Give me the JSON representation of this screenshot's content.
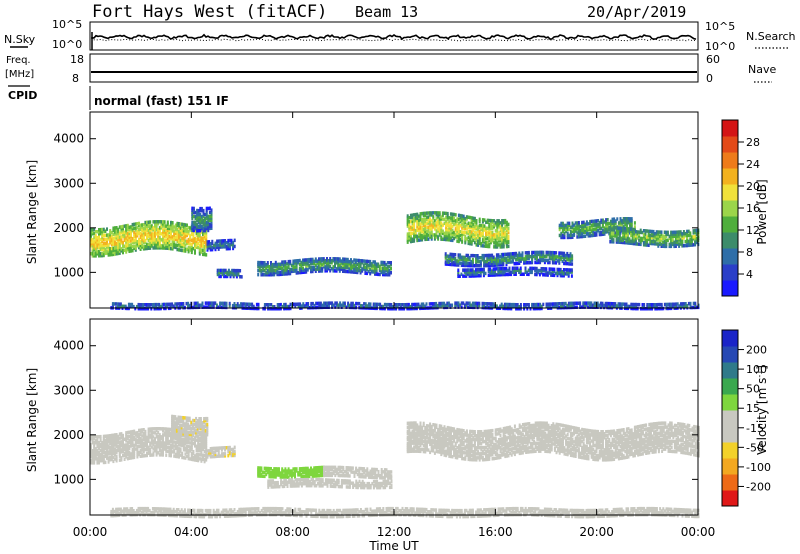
{
  "header": {
    "station": "Fort Hays West (fitACF)",
    "beam": "Beam 13",
    "date": "20/Apr/2019"
  },
  "noise_panel": {
    "left_label": "N.Sky",
    "right_label": "N.Search",
    "left_ticks": [
      "10^5",
      "10^0"
    ],
    "right_ticks": [
      "10^5",
      "10^0"
    ]
  },
  "freq_panel": {
    "left_label_1": "Freq.",
    "left_label_2": "[MHz]",
    "right_label": "Nave",
    "left_ticks": [
      "18",
      "8"
    ],
    "right_ticks": [
      "60",
      "0"
    ]
  },
  "cpid": {
    "label": "CPID",
    "mode": "normal (fast) 151 IF"
  },
  "colors": {
    "power_scale": [
      "#1a1aff",
      "#2a3fc8",
      "#2e6ea8",
      "#3c8c6a",
      "#4fae3c",
      "#9bd54a",
      "#f1e13a",
      "#f3b21f",
      "#ee7b1a",
      "#e34a18",
      "#d41515"
    ],
    "velocity_scale": [
      "#e01818",
      "#ee6a16",
      "#f3a820",
      "#f2d12a",
      "#c8c8c0",
      "#c8c8c0",
      "#7ed63e",
      "#3aa84f",
      "#2f7a8a",
      "#2648b4",
      "#1a24c8"
    ],
    "ground_scatter": "#c6c6be"
  },
  "chart_data": [
    {
      "type": "heatmap",
      "title": "Power",
      "ylabel": "Slant Range [km]",
      "yticks": [
        "1000",
        "2000",
        "3000",
        "4000"
      ],
      "ylim": [
        200,
        4600
      ],
      "xlim_hours": [
        0,
        24
      ],
      "colorbar": {
        "label": "Power [dB]",
        "ticks": [
          "4",
          "8",
          "12",
          "16",
          "20",
          "24",
          "28"
        ],
        "range": [
          0,
          32
        ]
      },
      "regions": [
        {
          "start_hour": 0.0,
          "end_hour": 4.6,
          "center_km": 1800,
          "width_km": 600,
          "value_db": 22
        },
        {
          "start_hour": 4.0,
          "end_hour": 4.8,
          "center_km": 2300,
          "width_km": 500,
          "value_db": 12
        },
        {
          "start_hour": 4.6,
          "end_hour": 5.7,
          "center_km": 1650,
          "width_km": 200,
          "value_db": 10
        },
        {
          "start_hour": 5.0,
          "end_hour": 6.0,
          "center_km": 1000,
          "width_km": 150,
          "value_db": 12
        },
        {
          "start_hour": 6.6,
          "end_hour": 11.9,
          "center_km": 1180,
          "width_km": 300,
          "value_db": 13
        },
        {
          "start_hour": 12.5,
          "end_hour": 16.5,
          "center_km": 2000,
          "width_km": 600,
          "value_db": 20
        },
        {
          "start_hour": 14.0,
          "end_hour": 19.0,
          "center_km": 1350,
          "width_km": 250,
          "value_db": 12
        },
        {
          "start_hour": 14.5,
          "end_hour": 19.0,
          "center_km": 1050,
          "width_km": 150,
          "value_db": 10
        },
        {
          "start_hour": 18.5,
          "end_hour": 21.5,
          "center_km": 2050,
          "width_km": 350,
          "value_db": 14
        },
        {
          "start_hour": 20.5,
          "end_hour": 24.0,
          "center_km": 1850,
          "width_km": 350,
          "value_db": 16
        },
        {
          "start_hour": 0.8,
          "end_hour": 24.0,
          "center_km": 300,
          "width_km": 120,
          "value_db": 9
        }
      ]
    },
    {
      "type": "heatmap",
      "title": "Velocity",
      "xlabel": "Time UT",
      "ylabel": "Slant Range [km]",
      "yticks": [
        "1000",
        "2000",
        "3000",
        "4000"
      ],
      "ylim": [
        200,
        4600
      ],
      "xticks": [
        "00:00",
        "04:00",
        "08:00",
        "12:00",
        "16:00",
        "20:00",
        "00:00"
      ],
      "xlim_hours": [
        0,
        24
      ],
      "colorbar": {
        "label": "Velocity [m s^-1]",
        "ticks": [
          "200",
          "100",
          "50",
          "15",
          "-15",
          "-50",
          "-100",
          "-200"
        ],
        "range": [
          -250,
          250
        ]
      },
      "regions": [
        {
          "start_hour": 0.0,
          "end_hour": 4.6,
          "center_km": 1800,
          "width_km": 600,
          "value_ms": 0
        },
        {
          "start_hour": 3.2,
          "end_hour": 4.6,
          "center_km": 2300,
          "width_km": 400,
          "value_ms": -60
        },
        {
          "start_hour": 4.6,
          "end_hour": 5.7,
          "center_km": 1650,
          "width_km": 200,
          "value_ms": -60
        },
        {
          "start_hour": 6.6,
          "end_hour": 9.2,
          "center_km": 1220,
          "width_km": 200,
          "value_ms": 45
        },
        {
          "start_hour": 9.2,
          "end_hour": 11.9,
          "center_km": 1200,
          "width_km": 200,
          "value_ms": -50
        },
        {
          "start_hour": 7.0,
          "end_hour": 11.9,
          "center_km": 950,
          "width_km": 150,
          "value_ms": 0
        },
        {
          "start_hour": 12.5,
          "end_hour": 24.0,
          "center_km": 1900,
          "width_km": 650,
          "value_ms": 0
        },
        {
          "start_hour": 0.8,
          "end_hour": 24.0,
          "center_km": 300,
          "width_km": 150,
          "value_ms": -40
        }
      ]
    }
  ]
}
